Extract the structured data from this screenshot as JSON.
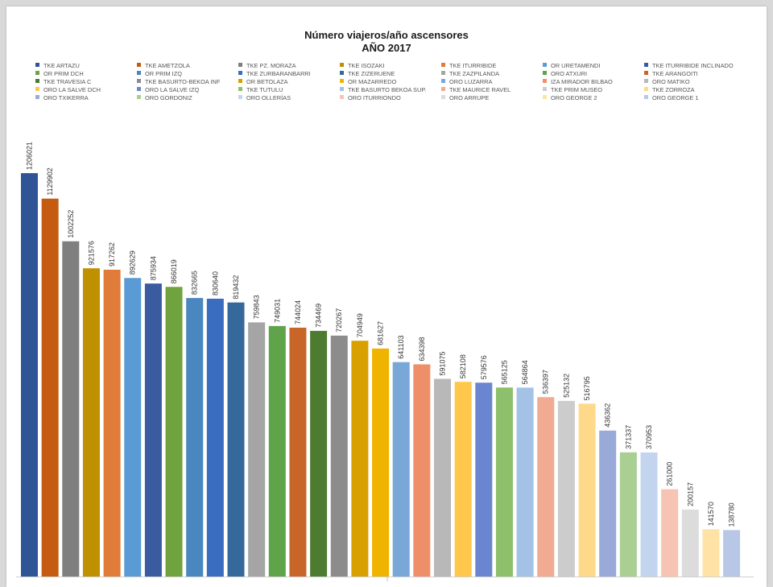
{
  "chart_data": {
    "type": "bar",
    "title": "Número viajeros/año ascensores",
    "subtitle": "AÑO 2017",
    "legend_placement": "top",
    "grid": false,
    "ylim": [
      0,
      1300000
    ],
    "series": [
      {
        "name": "TKE ARTAZU",
        "value": 1206021,
        "color": "#2f5597"
      },
      {
        "name": "TKE AMETZOLA",
        "value": 1129902,
        "color": "#c55a11"
      },
      {
        "name": "TKE PZ. MORAZA",
        "value": 1002252,
        "color": "#7f7f7f"
      },
      {
        "name": "TKE ISOZAKI",
        "value": 921576,
        "color": "#bf9000"
      },
      {
        "name": "TKE ITURRIBIDE",
        "value": 917262,
        "color": "#e07b39"
      },
      {
        "name": "OR URETAMENDI",
        "value": 892629,
        "color": "#5b9bd5"
      },
      {
        "name": "TKE ITURRIBIDE INCLINADO",
        "value": 875934,
        "color": "#3a5ba0"
      },
      {
        "name": "OR PRIM DCH",
        "value": 866019,
        "color": "#70a340"
      },
      {
        "name": "OR PRIM IZQ",
        "value": 832665,
        "color": "#4a86c0"
      },
      {
        "name": "TKE ZURBARANBARRI",
        "value": 830640,
        "color": "#3a6cc0"
      },
      {
        "name": "TKE ZIZERUENE",
        "value": 819432,
        "color": "#35699c"
      },
      {
        "name": "TKE ZAZPILANDA",
        "value": 759843,
        "color": "#a5a5a5"
      },
      {
        "name": "ORO ATXURI",
        "value": 749031,
        "color": "#5fa34a"
      },
      {
        "name": "TKE ARANGOITI",
        "value": 744024,
        "color": "#c8662a"
      },
      {
        "name": "TKE TRAVESIA C",
        "value": 734469,
        "color": "#4d7c31"
      },
      {
        "name": "TKE BASURTO-BEKOA INF",
        "value": 720267,
        "color": "#8c8c8c"
      },
      {
        "name": "OR BETOLAZA",
        "value": 704949,
        "color": "#d8a000"
      },
      {
        "name": "OR MAZARREDO",
        "value": 681627,
        "color": "#f0b400"
      },
      {
        "name": "ORO LUZARRA",
        "value": 641103,
        "color": "#79a7d8"
      },
      {
        "name": "IZA MIRADOR BILBAO",
        "value": 634398,
        "color": "#ef8f6a"
      },
      {
        "name": "ORO MATIKO",
        "value": 591075,
        "color": "#b8b8b8"
      },
      {
        "name": "ORO LA SALVE DCH",
        "value": 582108,
        "color": "#ffc84d"
      },
      {
        "name": "ORO LA SALVE IZQ",
        "value": 579576,
        "color": "#6a86d0"
      },
      {
        "name": "TKE TUTULU",
        "value": 565125,
        "color": "#8ebf6a"
      },
      {
        "name": "TKE BASURTO BEKOA SUP.",
        "value": 564864,
        "color": "#a4c2e6"
      },
      {
        "name": "TKE MAURICE RAVEL",
        "value": 536397,
        "color": "#f1ab93"
      },
      {
        "name": "TKE PRIM MUSEO",
        "value": 525132,
        "color": "#cccccc"
      },
      {
        "name": "TKE ZORROZA",
        "value": 516795,
        "color": "#ffd98a"
      },
      {
        "name": "ORO TXIKERRA",
        "value": 436362,
        "color": "#9aaad8"
      },
      {
        "name": "ORO GORDONIZ",
        "value": 371337,
        "color": "#a9cf93"
      },
      {
        "name": "ORO OLLERÍAS",
        "value": 370953,
        "color": "#c3d5ee"
      },
      {
        "name": "ORO ITURRIONDO",
        "value": 261000,
        "color": "#f6c4b4"
      },
      {
        "name": "ORO ARRUPE",
        "value": 200157,
        "color": "#dcdcdc"
      },
      {
        "name": "ORO GEORGE 2",
        "value": 141570,
        "color": "#ffe3a6"
      },
      {
        "name": "ORO GEORGE 1",
        "value": 138780,
        "color": "#b8c7e6"
      }
    ]
  }
}
